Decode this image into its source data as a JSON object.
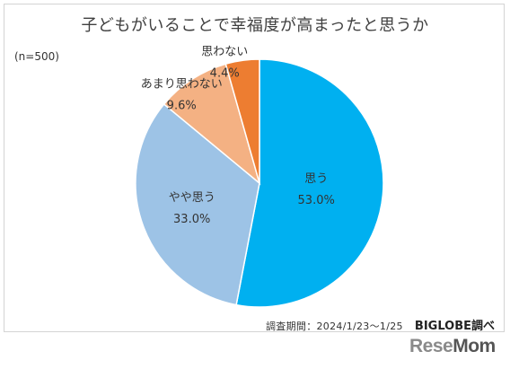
{
  "title": "子どもがいることで幸福度が高まったと思うか",
  "sample_size": "(n=500)",
  "source": {
    "date_range": "調査期間：2024/1/23～1/25",
    "org": "BIGLOBE調べ"
  },
  "brand": {
    "logo_text": "ReseMom",
    "logo_part_a": "Rese",
    "logo_part_b": "Mom"
  },
  "chart_data": {
    "type": "pie",
    "title": "子どもがいることで幸福度が高まったと思うか",
    "start_angle": "12 o'clock",
    "direction": "clockwise",
    "slices": [
      {
        "label": "思う",
        "value": 53.0,
        "value_label": "53.0%",
        "color": "#00b0f0"
      },
      {
        "label": "やや思う",
        "value": 33.0,
        "value_label": "33.0%",
        "color": "#9dc3e6"
      },
      {
        "label": "あまり思わない",
        "value": 9.6,
        "value_label": "9.6%",
        "color": "#f4b183"
      },
      {
        "label": "思わない",
        "value": 4.4,
        "value_label": "4.4%",
        "color": "#ed7d31"
      }
    ]
  }
}
